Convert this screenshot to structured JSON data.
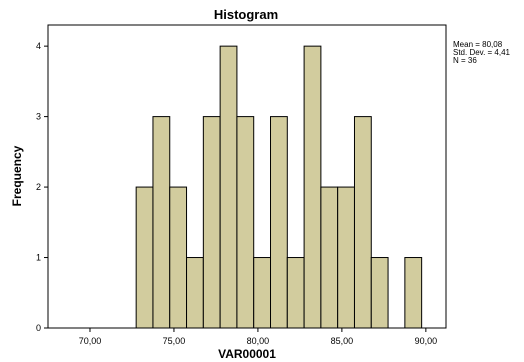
{
  "chart_data": {
    "type": "bar",
    "title": "Histogram",
    "xlabel": "VAR00001",
    "ylabel": "Frequency",
    "xlim": [
      67.5,
      91.2
    ],
    "ylim": [
      0,
      4.3
    ],
    "bin_width": 1.0,
    "bins": [
      {
        "center": 73.25,
        "count": 2
      },
      {
        "center": 74.25,
        "count": 3
      },
      {
        "center": 75.25,
        "count": 2
      },
      {
        "center": 76.25,
        "count": 1
      },
      {
        "center": 77.25,
        "count": 3
      },
      {
        "center": 78.25,
        "count": 4
      },
      {
        "center": 79.25,
        "count": 3
      },
      {
        "center": 80.25,
        "count": 1
      },
      {
        "center": 81.25,
        "count": 3
      },
      {
        "center": 82.25,
        "count": 1
      },
      {
        "center": 83.25,
        "count": 4
      },
      {
        "center": 84.25,
        "count": 2
      },
      {
        "center": 85.25,
        "count": 2
      },
      {
        "center": 86.25,
        "count": 3
      },
      {
        "center": 87.25,
        "count": 1
      },
      {
        "center": 89.25,
        "count": 1
      }
    ],
    "x_ticks": [
      {
        "value": 70,
        "label": "70,00"
      },
      {
        "value": 75,
        "label": "75,00"
      },
      {
        "value": 80,
        "label": "80,00"
      },
      {
        "value": 85,
        "label": "85,00"
      },
      {
        "value": 90,
        "label": "90,00"
      }
    ],
    "y_ticks": [
      {
        "value": 0,
        "label": "0"
      },
      {
        "value": 1,
        "label": "1"
      },
      {
        "value": 2,
        "label": "2"
      },
      {
        "value": 3,
        "label": "3"
      },
      {
        "value": 4,
        "label": "4"
      }
    ],
    "stats": [
      "Mean = 80,08",
      "Std. Dev. = 4,41",
      "N = 36"
    ],
    "bar_color": "#d2cc9e",
    "bar_edge_color": "#000000",
    "grid": false,
    "legend": "none"
  }
}
